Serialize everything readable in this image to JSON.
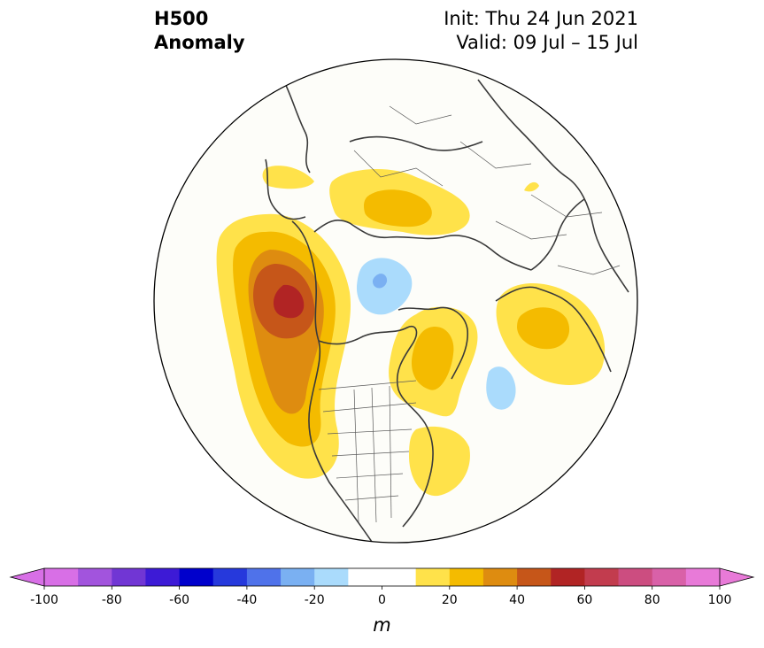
{
  "title": {
    "left_line1": "H500",
    "left_line2": "Anomaly",
    "right_line1": "Init: Thu 24 Jun 2021",
    "right_line2": "Valid: 09 Jul – 15 Jul"
  },
  "colorbar": {
    "unit": "m",
    "ticks": [
      "-100",
      "-80",
      "-60",
      "-40",
      "-20",
      "0",
      "20",
      "40",
      "60",
      "80",
      "100"
    ],
    "bins": [
      {
        "from": -100,
        "to": -90,
        "color": "#d86fe6"
      },
      {
        "from": -90,
        "to": -80,
        "color": "#a254dd"
      },
      {
        "from": -80,
        "to": -70,
        "color": "#7136d4"
      },
      {
        "from": -70,
        "to": -60,
        "color": "#3d1ad6"
      },
      {
        "from": -60,
        "to": -50,
        "color": "#0000cc"
      },
      {
        "from": -50,
        "to": -40,
        "color": "#2639dc"
      },
      {
        "from": -40,
        "to": -30,
        "color": "#4f72ea"
      },
      {
        "from": -30,
        "to": -20,
        "color": "#7ab0f2"
      },
      {
        "from": -20,
        "to": -10,
        "color": "#aadbfc"
      },
      {
        "from": -10,
        "to": 0,
        "color": "#ffffff"
      },
      {
        "from": 0,
        "to": 10,
        "color": "#ffffff"
      },
      {
        "from": 10,
        "to": 20,
        "color": "#ffe24a"
      },
      {
        "from": 20,
        "to": 30,
        "color": "#f4bb00"
      },
      {
        "from": 30,
        "to": 40,
        "color": "#de8c10"
      },
      {
        "from": 40,
        "to": 50,
        "color": "#c65619"
      },
      {
        "from": 50,
        "to": 60,
        "color": "#b12424"
      },
      {
        "from": 60,
        "to": 70,
        "color": "#c23c4e"
      },
      {
        "from": 70,
        "to": 80,
        "color": "#cc4d80"
      },
      {
        "from": 80,
        "to": 90,
        "color": "#d961a8"
      },
      {
        "from": 90,
        "to": 100,
        "color": "#e87ad8"
      }
    ],
    "extend_low_color": "#d86fe6",
    "extend_high_color": "#e87ad8"
  },
  "map_colors": {
    "background": "#fdfdf9",
    "coastline": "#3a3a3a",
    "borders": "#5a5a5a"
  }
}
